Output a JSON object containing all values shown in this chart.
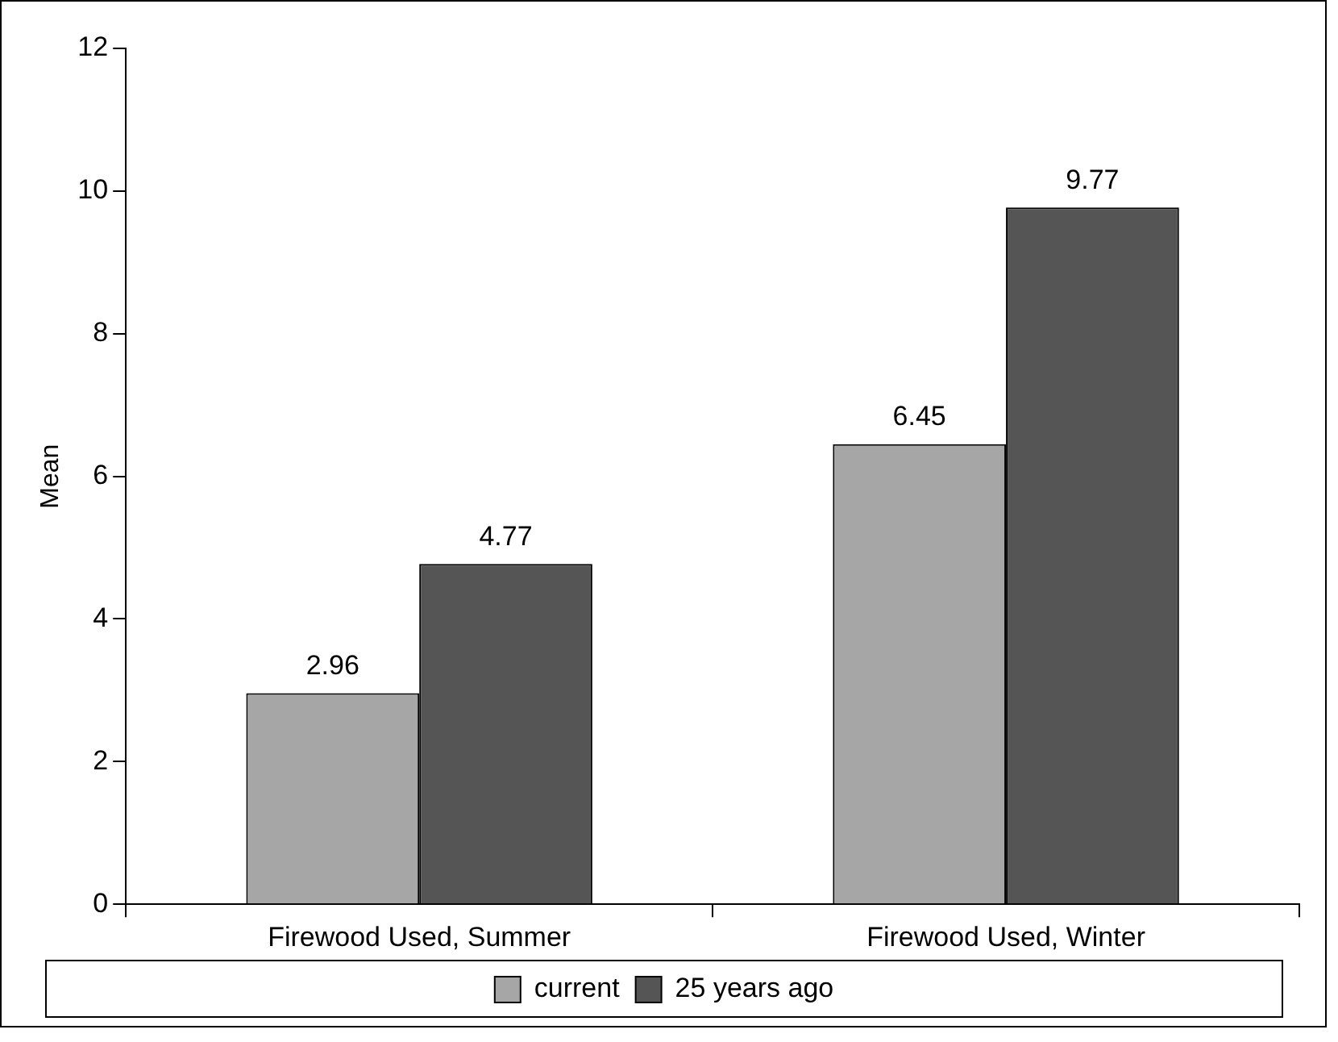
{
  "chart_data": {
    "type": "bar",
    "ylabel": "Mean",
    "categories": [
      "Firewood Used, Summer",
      "Firewood Used, Winter"
    ],
    "series": [
      {
        "name": "current",
        "color": "#a6a6a6",
        "values": [
          2.96,
          6.45
        ]
      },
      {
        "name": "25 years ago",
        "color": "#555555",
        "values": [
          4.77,
          9.77
        ]
      }
    ],
    "ylim": [
      0,
      12
    ],
    "yticks": [
      0,
      2,
      4,
      6,
      8,
      10,
      12
    ],
    "grid": false,
    "legend": "bottom",
    "data_labels": true
  }
}
